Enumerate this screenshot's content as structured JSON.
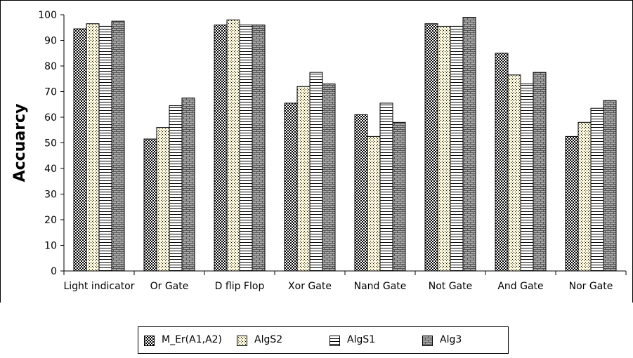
{
  "chart_data": {
    "type": "bar",
    "title": "",
    "xlabel": "",
    "ylabel": "Accuarcy",
    "ylim": [
      0,
      100
    ],
    "yticks": [
      "0",
      "10",
      "20",
      "30",
      "40",
      "50",
      "60",
      "70",
      "80",
      "90",
      "100"
    ],
    "grid": false,
    "legend_position": "bottom",
    "categories": [
      "Light indicator",
      "Or Gate",
      "D flip Flop",
      "Xor Gate",
      "Nand Gate",
      "Not Gate",
      "And Gate",
      "Nor Gate"
    ],
    "series": [
      {
        "name": "M_Er(A1,A2)",
        "pattern": "dense-dots",
        "values": [
          94.5,
          51.5,
          96,
          65.5,
          61,
          96.5,
          85,
          52.5
        ]
      },
      {
        "name": "AlgS2",
        "pattern": "sparse-dots",
        "values": [
          96.5,
          56,
          98,
          72,
          52.5,
          95.5,
          76.5,
          58
        ]
      },
      {
        "name": "AlgS1",
        "pattern": "horizontal-lines",
        "values": [
          95.5,
          64.5,
          96,
          77.5,
          65.5,
          95.5,
          73,
          63.5
        ]
      },
      {
        "name": "Alg3",
        "pattern": "bricks",
        "values": [
          97.5,
          67.5,
          96,
          73,
          58,
          99,
          77.5,
          66.5
        ]
      }
    ]
  }
}
